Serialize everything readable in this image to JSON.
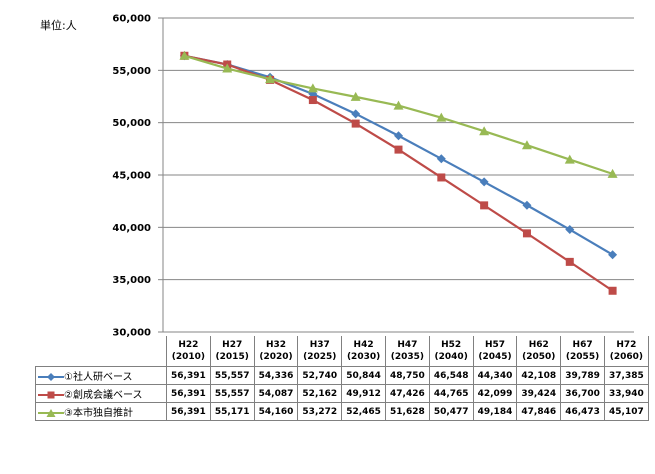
{
  "unit_label": "単位:人",
  "chart_data": {
    "type": "line",
    "categories": [
      {
        "era": "H22",
        "year": "(2010)"
      },
      {
        "era": "H27",
        "year": "(2015)"
      },
      {
        "era": "H32",
        "year": "(2020)"
      },
      {
        "era": "H37",
        "year": "(2025)"
      },
      {
        "era": "H42",
        "year": "(2030)"
      },
      {
        "era": "H47",
        "year": "(2035)"
      },
      {
        "era": "H52",
        "year": "(2040)"
      },
      {
        "era": "H57",
        "year": "(2045)"
      },
      {
        "era": "H62",
        "year": "(2050)"
      },
      {
        "era": "H67",
        "year": "(2055)"
      },
      {
        "era": "H72",
        "year": "(2060)"
      }
    ],
    "ylim": [
      30000,
      60000
    ],
    "yticks": [
      "30,000",
      "35,000",
      "40,000",
      "45,000",
      "50,000",
      "55,000",
      "60,000"
    ],
    "ytick_values": [
      30000,
      35000,
      40000,
      45000,
      50000,
      55000,
      60000
    ],
    "legend_position": "bottom-table",
    "series": [
      {
        "name": "①社人研ベース",
        "color": "#4a7ebb",
        "marker": "diamond",
        "values": [
          56391,
          55557,
          54336,
          52740,
          50844,
          48750,
          46548,
          44340,
          42108,
          39789,
          37385
        ],
        "labels": [
          "56,391",
          "55,557",
          "54,336",
          "52,740",
          "50,844",
          "48,750",
          "46,548",
          "44,340",
          "42,108",
          "39,789",
          "37,385"
        ]
      },
      {
        "name": "②創成会議ベース",
        "color": "#be4b48",
        "marker": "square",
        "values": [
          56391,
          55557,
          54087,
          52162,
          49912,
          47426,
          44765,
          42099,
          39424,
          36700,
          33940
        ],
        "labels": [
          "56,391",
          "55,557",
          "54,087",
          "52,162",
          "49,912",
          "47,426",
          "44,765",
          "42,099",
          "39,424",
          "36,700",
          "33,940"
        ]
      },
      {
        "name": "③本市独自推計",
        "color": "#98b954",
        "marker": "triangle",
        "values": [
          56391,
          55171,
          54160,
          53272,
          52465,
          51628,
          50477,
          49184,
          47846,
          46473,
          45107
        ],
        "labels": [
          "56,391",
          "55,171",
          "54,160",
          "53,272",
          "52,465",
          "51,628",
          "50,477",
          "49,184",
          "47,846",
          "46,473",
          "45,107"
        ]
      }
    ]
  }
}
